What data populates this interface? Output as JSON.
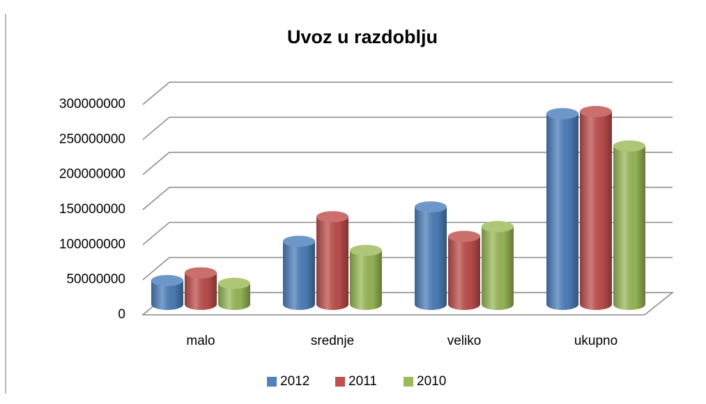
{
  "chart_data": {
    "type": "bar",
    "title": "Uvoz u razdoblju",
    "categories": [
      "malo",
      "srednje",
      "veliko",
      "ukupno"
    ],
    "series": [
      {
        "name": "2012",
        "color": "#4f81bd",
        "values": [
          34000000,
          90000000,
          139000000,
          272000000
        ]
      },
      {
        "name": "2011",
        "color": "#c0504d",
        "values": [
          45000000,
          125000000,
          97000000,
          275000000
        ]
      },
      {
        "name": "2010",
        "color": "#9bbb59",
        "values": [
          30000000,
          77000000,
          111000000,
          226000000
        ]
      }
    ],
    "ylim": [
      0,
      300000000
    ],
    "yticks": [
      0,
      50000000,
      100000000,
      150000000,
      200000000,
      250000000,
      300000000
    ],
    "grid": true,
    "legend": "bottom"
  }
}
